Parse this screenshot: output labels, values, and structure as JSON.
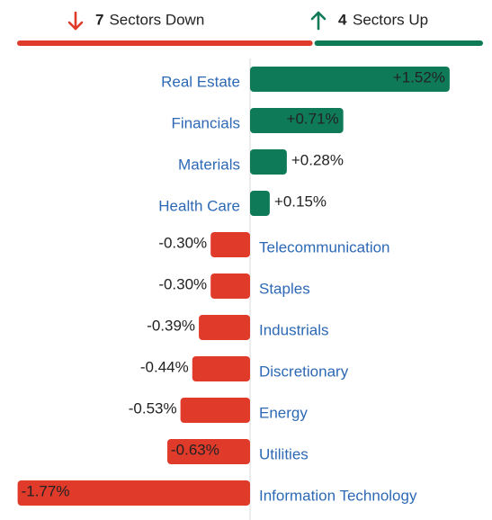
{
  "header": {
    "down": {
      "count": 7,
      "label": "Sectors Down",
      "color": "#e03a2a"
    },
    "up": {
      "count": 4,
      "label": "Sectors Up",
      "color": "#0f7a58"
    }
  },
  "chart_data": {
    "type": "bar",
    "orientation": "horizontal",
    "categories": [
      "Real Estate",
      "Financials",
      "Materials",
      "Health Care",
      "Telecommunication",
      "Staples",
      "Industrials",
      "Discretionary",
      "Energy",
      "Utilities",
      "Information Technology"
    ],
    "values": [
      1.52,
      0.71,
      0.28,
      0.15,
      -0.3,
      -0.3,
      -0.39,
      -0.44,
      -0.53,
      -0.63,
      -1.77
    ],
    "value_labels": [
      "+1.52%",
      "+0.71%",
      "+0.28%",
      "+0.15%",
      "-0.30%",
      "-0.30%",
      "-0.39%",
      "-0.44%",
      "-0.53%",
      "-0.63%",
      "-1.77%"
    ],
    "positive_color": "#0f7a58",
    "negative_color": "#e03a2a"
  }
}
